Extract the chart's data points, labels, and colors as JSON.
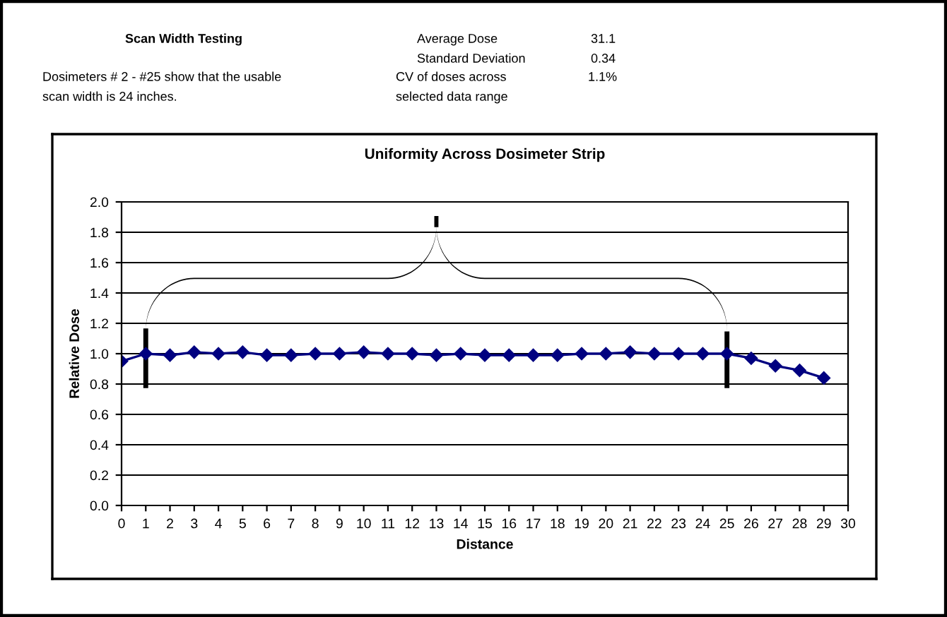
{
  "chart_data": {
    "type": "line",
    "title": "Uniformity Across Dosimeter Strip",
    "subtitle": "Scan Width Testing",
    "xlabel": "Distance",
    "ylabel": "Relative Dose",
    "annotations": [
      "Dosimeters # 2 - #25 show that the usable",
      "scan width is 24 inches.",
      "Average Dose",
      "31.1",
      "Standard Deviation",
      "0.34",
      "CV of doses across",
      "selected data range",
      "1.1%"
    ],
    "x": [
      0,
      1,
      2,
      3,
      4,
      5,
      6,
      7,
      8,
      9,
      10,
      11,
      12,
      13,
      14,
      15,
      16,
      17,
      18,
      19,
      20,
      21,
      22,
      23,
      24,
      25,
      26,
      27,
      28,
      29
    ],
    "series": [
      {
        "color": "#000080",
        "values": [
          0.95,
          1.0,
          0.99,
          1.01,
          1.0,
          1.01,
          0.99,
          0.99,
          1.0,
          1.0,
          1.01,
          1.0,
          1.0,
          0.99,
          1.0,
          0.99,
          0.99,
          0.99,
          0.99,
          1.0,
          1.0,
          1.01,
          1.0,
          1.0,
          1.0,
          1.0,
          0.97,
          0.92,
          0.89,
          0.84
        ]
      }
    ],
    "xlim": [
      0,
      30
    ],
    "xticks": [
      0,
      1,
      2,
      3,
      4,
      5,
      6,
      7,
      8,
      9,
      10,
      11,
      12,
      13,
      14,
      15,
      16,
      17,
      18,
      19,
      20,
      21,
      22,
      23,
      24,
      25,
      26,
      27,
      28,
      29,
      30
    ],
    "ylim": [
      0,
      2
    ],
    "yticks": [
      {
        "value": 0,
        "label": "0.0"
      },
      {
        "value": 0.2,
        "label": "0.2"
      },
      {
        "value": 0.4,
        "label": "0.4"
      },
      {
        "value": 0.6,
        "label": "0.6"
      },
      {
        "value": 0.8,
        "label": "0.8"
      },
      {
        "value": 1,
        "label": "1.0"
      },
      {
        "value": 1.2,
        "label": "1.2"
      },
      {
        "value": 1.4,
        "label": "1.4"
      },
      {
        "value": 1.6,
        "label": "1.6"
      },
      {
        "value": 1.8,
        "label": "1.8"
      },
      {
        "value": 2,
        "label": "2.0"
      }
    ],
    "grid": "y",
    "marker": "diamond",
    "line_style": "solid",
    "legend": false
  }
}
